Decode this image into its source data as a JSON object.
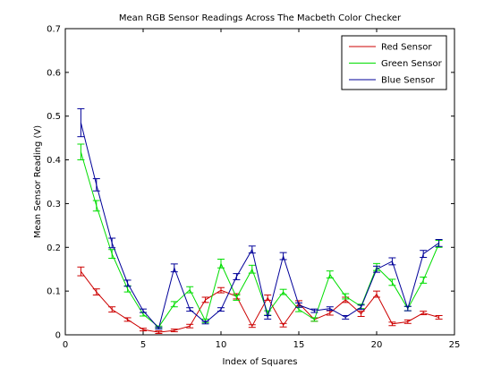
{
  "chart_data": {
    "type": "line",
    "title": "Mean RGB Sensor Readings Across The Macbeth Color Checker",
    "xlabel": "Index of Squares",
    "ylabel": "Mean Sensor Reading (V)",
    "xlim": [
      0,
      25
    ],
    "ylim": [
      0,
      0.7
    ],
    "xticks": [
      "0",
      "5",
      "10",
      "15",
      "20",
      "25"
    ],
    "yticks": [
      "0",
      "0.1",
      "0.2",
      "0.3",
      "0.4",
      "0.5",
      "0.6",
      "0.7"
    ],
    "grid": false,
    "legend_position": "top-right",
    "x": [
      1,
      2,
      3,
      4,
      5,
      6,
      7,
      8,
      9,
      10,
      11,
      12,
      13,
      14,
      15,
      16,
      17,
      18,
      19,
      20,
      21,
      22,
      23,
      24
    ],
    "series": [
      {
        "name": "Red Sensor",
        "color": "#cc0000",
        "values": [
          0.145,
          0.098,
          0.058,
          0.035,
          0.012,
          0.006,
          0.01,
          0.02,
          0.08,
          0.102,
          0.088,
          0.02,
          0.085,
          0.022,
          0.072,
          0.035,
          0.05,
          0.08,
          0.048,
          0.093,
          0.025,
          0.03,
          0.05,
          0.04
        ],
        "errors": [
          0.01,
          0.007,
          0.006,
          0.004,
          0.003,
          0.003,
          0.003,
          0.004,
          0.006,
          0.006,
          0.006,
          0.003,
          0.006,
          0.004,
          0.006,
          0.004,
          0.005,
          0.006,
          0.006,
          0.007,
          0.004,
          0.004,
          0.004,
          0.004
        ]
      },
      {
        "name": "Green Sensor",
        "color": "#00dd00",
        "values": [
          0.418,
          0.295,
          0.185,
          0.105,
          0.047,
          0.018,
          0.07,
          0.103,
          0.032,
          0.163,
          0.085,
          0.15,
          0.05,
          0.098,
          0.058,
          0.035,
          0.138,
          0.088,
          0.065,
          0.155,
          0.12,
          0.06,
          0.125,
          0.208
        ]
      },
      {
        "name": "Blue Sensor",
        "color": "#000099",
        "values": [
          0.485,
          0.343,
          0.21,
          0.118,
          0.055,
          0.015,
          0.153,
          0.058,
          0.028,
          0.058,
          0.133,
          0.195,
          0.04,
          0.18,
          0.068,
          0.055,
          0.06,
          0.04,
          0.063,
          0.15,
          0.168,
          0.06,
          0.185,
          0.21
        ]
      }
    ],
    "errors_green": [
      0.018,
      0.012,
      0.01,
      0.007,
      0.004,
      0.002,
      0.006,
      0.007,
      0.004,
      0.01,
      0.006,
      0.009,
      0.005,
      0.006,
      0.005,
      0.004,
      0.008,
      0.006,
      0.005,
      0.008,
      0.007,
      0.005,
      0.007,
      0.008
    ],
    "errors_blue": [
      0.032,
      0.014,
      0.011,
      0.007,
      0.004,
      0.002,
      0.009,
      0.004,
      0.003,
      0.004,
      0.007,
      0.008,
      0.004,
      0.008,
      0.005,
      0.004,
      0.004,
      0.004,
      0.005,
      0.007,
      0.008,
      0.005,
      0.008,
      0.008
    ]
  }
}
